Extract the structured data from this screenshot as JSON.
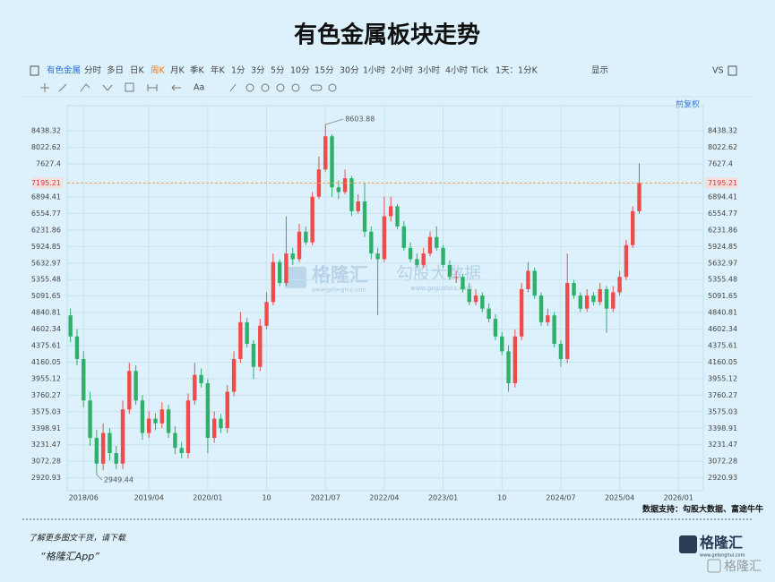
{
  "title": "有色金属板块走势",
  "toolbar": {
    "symbol": "有色金属",
    "periods": [
      "分时",
      "多日",
      "日K",
      "周K",
      "月K",
      "季K",
      "年K",
      "1分",
      "3分",
      "5分",
      "10分",
      "15分",
      "30分",
      "1小时",
      "2小时",
      "3小时",
      "4小时",
      "Tick",
      "1天：1分K"
    ],
    "display": "显示",
    "compare": "VS",
    "text_tool": "Aa",
    "adjust": "前复权"
  },
  "chart_data": {
    "type": "candlestick",
    "log_scale": true,
    "grid": true,
    "up_color": "#ef4b4b",
    "down_color": "#2eb06a",
    "price_line_color": "#f0a050",
    "xlim": [
      -0.5,
      96.8
    ],
    "ylim": [
      2808,
      8869
    ],
    "xticks": [
      {
        "value": 2,
        "label": "2018/06"
      },
      {
        "value": 12,
        "label": "2019/04"
      },
      {
        "value": 21,
        "label": "2020/01"
      },
      {
        "value": 30,
        "label": "10"
      },
      {
        "value": 39,
        "label": "2021/07"
      },
      {
        "value": 48,
        "label": "2022/04"
      },
      {
        "value": 57,
        "label": "2023/01"
      },
      {
        "value": 66,
        "label": "10"
      },
      {
        "value": 75,
        "label": "2024/07"
      },
      {
        "value": 84,
        "label": "2025/04"
      },
      {
        "value": 93,
        "label": "2026/01"
      }
    ],
    "yticks": [
      2920.93,
      3072.28,
      3231.47,
      3398.91,
      3575.03,
      3760.27,
      3955.12,
      4160.05,
      4375.61,
      4602.34,
      4840.81,
      5091.65,
      5355.48,
      5632.97,
      5924.85,
      6231.86,
      6554.77,
      6894.41,
      7627.4,
      8022.62,
      8438.32
    ],
    "candles": {
      "open": [
        4800,
        4500,
        4200,
        3700,
        3300,
        3050,
        3350,
        3150,
        3050,
        3600,
        4050,
        3700,
        3350,
        3500,
        3450,
        3600,
        3350,
        3200,
        3150,
        3700,
        4000,
        3900,
        3300,
        3500,
        3400,
        3800,
        4200,
        4700,
        4400,
        4100,
        4650,
        5000,
        5650,
        5300,
        5800,
        5700,
        6200,
        6000,
        6900,
        7500,
        8300,
        7100,
        7000,
        7300,
        6600,
        6800,
        6200,
        5800,
        5700,
        6500,
        6700,
        6300,
        5900,
        5700,
        5600,
        5800,
        6100,
        5900,
        5600,
        5400,
        5400,
        5200,
        5000,
        5100,
        4900,
        4750,
        4500,
        4300,
        3900,
        4500,
        5200,
        5500,
        5100,
        4700,
        4800,
        4400,
        4200,
        5300,
        5100,
        4900,
        5100,
        5000,
        5200,
        4900,
        5150,
        5400,
        5950,
        6600
      ],
      "high": [
        4900,
        4600,
        4300,
        3800,
        3380,
        3450,
        3400,
        3220,
        3700,
        4150,
        4120,
        3760,
        3580,
        3560,
        3680,
        3650,
        3420,
        3260,
        3780,
        4150,
        4080,
        3950,
        3580,
        3550,
        3880,
        4300,
        4850,
        4760,
        4450,
        4750,
        5150,
        5800,
        5700,
        6500,
        5900,
        6350,
        6300,
        7000,
        7800,
        8603.88,
        8350,
        7250,
        7500,
        7350,
        6950,
        7200,
        6300,
        5900,
        6900,
        6900,
        6750,
        6400,
        6000,
        5800,
        5900,
        6200,
        6300,
        5950,
        5680,
        5500,
        5450,
        5300,
        5200,
        5150,
        4980,
        4820,
        4560,
        4380,
        4600,
        5300,
        5650,
        5550,
        5150,
        4900,
        4850,
        4450,
        5800,
        5350,
        5150,
        5200,
        5150,
        5300,
        5250,
        5250,
        5500,
        6050,
        6700,
        7640
      ],
      "low": [
        4420,
        4120,
        3620,
        3220,
        2949.44,
        2990,
        3080,
        3000,
        3000,
        3550,
        3650,
        3280,
        3300,
        3380,
        3400,
        3300,
        3140,
        3100,
        3100,
        3650,
        3850,
        3150,
        3250,
        3350,
        3350,
        3750,
        4150,
        4350,
        3950,
        4050,
        4600,
        4950,
        5250,
        5250,
        5600,
        5650,
        5950,
        5950,
        6850,
        7450,
        6900,
        6850,
        6950,
        6500,
        6550,
        6100,
        5700,
        4800,
        5650,
        6400,
        6250,
        5850,
        5650,
        5550,
        5550,
        5750,
        5850,
        5550,
        5350,
        5300,
        5150,
        4950,
        4950,
        4850,
        4700,
        4450,
        4250,
        3800,
        3850,
        4450,
        5150,
        5050,
        4650,
        4650,
        4350,
        4100,
        4150,
        5050,
        4850,
        4850,
        4950,
        4950,
        4550,
        4850,
        5100,
        5350,
        5900,
        6550
      ],
      "close": [
        4500,
        4200,
        3700,
        3300,
        3050,
        3350,
        3150,
        3050,
        3600,
        4050,
        3700,
        3350,
        3500,
        3450,
        3600,
        3350,
        3200,
        3150,
        3700,
        4000,
        3900,
        3300,
        3500,
        3400,
        3800,
        4200,
        4700,
        4400,
        4100,
        4650,
        5000,
        5650,
        5300,
        5800,
        5700,
        6200,
        6000,
        6900,
        7500,
        8300,
        7100,
        7000,
        7300,
        6600,
        6800,
        6200,
        5800,
        5700,
        6500,
        6700,
        6300,
        5900,
        5700,
        5600,
        5800,
        6100,
        5900,
        5600,
        5400,
        5400,
        5200,
        5000,
        5100,
        4900,
        4750,
        4500,
        4300,
        3900,
        4500,
        5200,
        5500,
        5100,
        4700,
        4800,
        4400,
        4200,
        5300,
        5100,
        4900,
        5100,
        5000,
        5200,
        4900,
        5150,
        5400,
        5950,
        6600,
        7195.21
      ]
    }
  },
  "watermarks": {
    "brand": "格隆汇",
    "brand_url": "www.gelonghui.com",
    "data": "勾股大数据",
    "data_url": "www.gogudata.com"
  },
  "source": "数据支持：勾股大数据、富途牛牛",
  "footer": {
    "line1": "了解更多图文干货，请下载",
    "line2": "“格隆汇App”",
    "logo": "格隆汇",
    "logo_url": "www.gelonghui.com",
    "watermark": "格隆汇"
  }
}
